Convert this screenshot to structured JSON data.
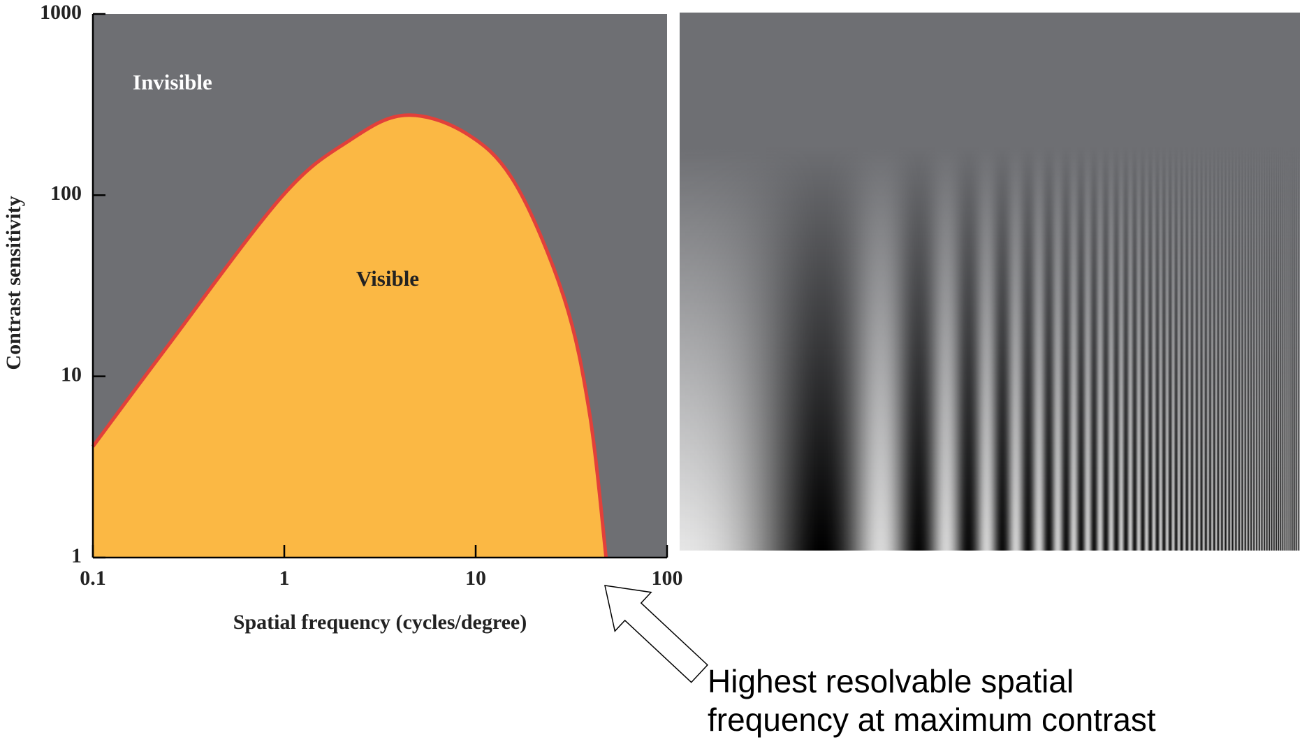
{
  "chart_data": {
    "type": "area",
    "x_label": "Spatial frequency (cycles/degree)",
    "y_label": "Contrast sensitivity",
    "annotations": [
      "Invisible",
      "Visible"
    ],
    "callout": [
      "Highest resolvable spatial",
      "frequency at maximum contrast"
    ],
    "x": [
      0.1,
      0.24,
      0.97,
      2.17,
      4.25,
      8.8,
      16,
      29,
      39.5,
      48
    ],
    "series": [
      {
        "name": "Contrast sensitivity",
        "color": "#fbb844",
        "line_color": "#e2403a",
        "values": [
          4.1,
          14.2,
          98,
          199,
          276,
          221,
          117,
          27,
          6.1,
          1
        ]
      }
    ],
    "xlim": [
      0.1,
      100
    ],
    "ylim": [
      1,
      1000
    ],
    "xticks": [
      0.1,
      1,
      10,
      100
    ],
    "yticks": [
      1,
      10,
      100,
      1000
    ],
    "xscale": "log",
    "yscale": "log",
    "background": "#6e6f73"
  }
}
